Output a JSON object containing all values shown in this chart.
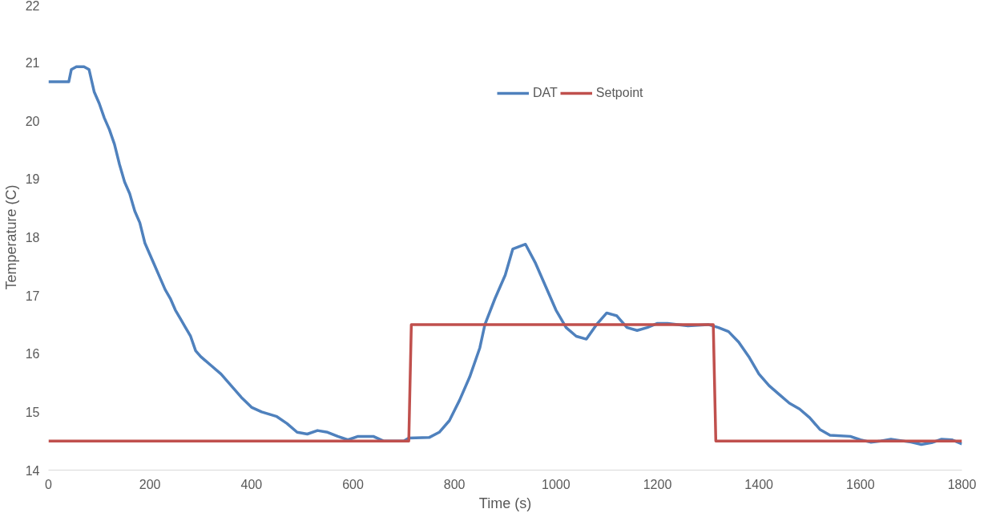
{
  "chart_data": {
    "type": "line",
    "xlabel": "Time (s)",
    "ylabel": "Temperature (C)",
    "xlim": [
      0,
      1800
    ],
    "xticks": [
      0,
      200,
      400,
      600,
      800,
      1000,
      1200,
      1400,
      1600,
      1800
    ],
    "ylim": [
      14,
      22
    ],
    "yticks": [
      14,
      15,
      16,
      17,
      18,
      19,
      20,
      21,
      22
    ],
    "grid": false,
    "legend": "top right",
    "line_style": "solid",
    "marker": "none",
    "series": [
      {
        "name": "DAT",
        "color": "#4f81bd",
        "x": [
          0,
          40,
          45,
          55,
          70,
          80,
          90,
          100,
          110,
          120,
          130,
          140,
          150,
          160,
          170,
          180,
          190,
          200,
          210,
          220,
          230,
          240,
          250,
          260,
          270,
          280,
          290,
          300,
          320,
          340,
          360,
          380,
          400,
          420,
          450,
          470,
          490,
          510,
          530,
          550,
          570,
          590,
          610,
          640,
          660,
          700,
          710,
          750,
          770,
          790,
          810,
          830,
          850,
          860,
          880,
          900,
          915,
          940,
          960,
          980,
          1000,
          1020,
          1040,
          1060,
          1080,
          1100,
          1120,
          1140,
          1160,
          1180,
          1200,
          1220,
          1260,
          1300,
          1320,
          1340,
          1360,
          1380,
          1400,
          1420,
          1440,
          1460,
          1480,
          1500,
          1520,
          1540,
          1580,
          1600,
          1620,
          1640,
          1660,
          1700,
          1720,
          1740,
          1760,
          1780,
          1800
        ],
        "values": [
          20.67,
          20.67,
          20.88,
          20.93,
          20.93,
          20.88,
          20.5,
          20.3,
          20.05,
          19.85,
          19.6,
          19.25,
          18.95,
          18.75,
          18.45,
          18.25,
          17.9,
          17.7,
          17.5,
          17.3,
          17.1,
          16.95,
          16.75,
          16.6,
          16.45,
          16.3,
          16.05,
          15.95,
          15.8,
          15.65,
          15.45,
          15.25,
          15.08,
          15.0,
          14.92,
          14.8,
          14.65,
          14.62,
          14.68,
          14.65,
          14.58,
          14.52,
          14.58,
          14.58,
          14.5,
          14.5,
          14.55,
          14.56,
          14.65,
          14.85,
          15.2,
          15.6,
          16.1,
          16.5,
          16.95,
          17.35,
          17.8,
          17.88,
          17.55,
          17.15,
          16.75,
          16.45,
          16.3,
          16.25,
          16.5,
          16.7,
          16.65,
          16.45,
          16.4,
          16.45,
          16.52,
          16.52,
          16.48,
          16.5,
          16.45,
          16.38,
          16.2,
          15.95,
          15.65,
          15.45,
          15.3,
          15.15,
          15.05,
          14.9,
          14.7,
          14.6,
          14.58,
          14.52,
          14.48,
          14.5,
          14.53,
          14.48,
          14.44,
          14.47,
          14.53,
          14.52,
          14.45
        ]
      },
      {
        "name": "Setpoint",
        "color": "#c0504d",
        "x": [
          0,
          710,
          715,
          1310,
          1315,
          1800
        ],
        "values": [
          14.5,
          14.5,
          16.5,
          16.5,
          14.5,
          14.5
        ]
      }
    ]
  }
}
